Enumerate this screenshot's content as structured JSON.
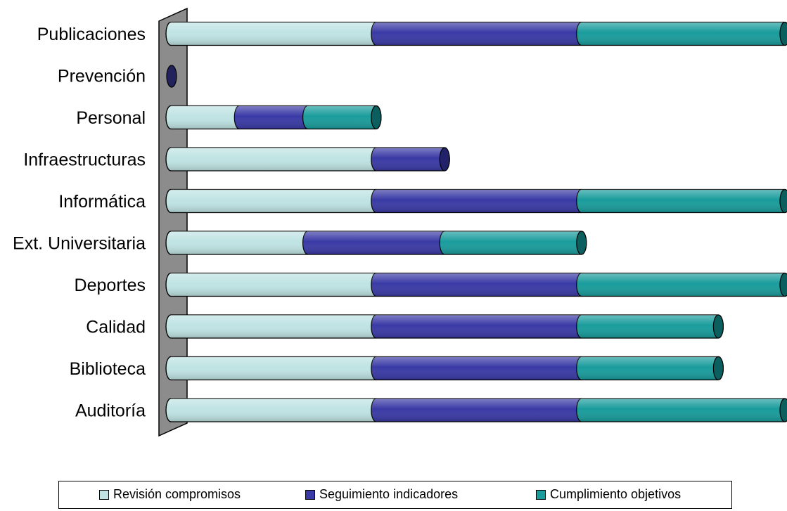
{
  "chart_data": {
    "type": "bar",
    "orientation": "horizontal",
    "stacked": true,
    "categories": [
      "Publicaciones",
      "Prevención",
      "Personal",
      "Infraestructuras",
      "Informática",
      "Ext. Universitaria",
      "Deportes",
      "Calidad",
      "Biblioteca",
      "Auditoría"
    ],
    "series": [
      {
        "name": "Revisión compromisos",
        "color": "#bfe3e3",
        "values": [
          3,
          0,
          1,
          3,
          3,
          2,
          3,
          3,
          3,
          3
        ]
      },
      {
        "name": "Seguimiento indicadores",
        "color": "#3a3aa6",
        "values": [
          3,
          0,
          1,
          1,
          3,
          2,
          3,
          3,
          3,
          3
        ]
      },
      {
        "name": "Cumplimiento objetivos",
        "color": "#1a9c9c",
        "values": [
          3,
          0,
          1,
          0,
          3,
          2,
          3,
          2,
          2,
          3
        ]
      }
    ],
    "xlim": [
      0,
      9
    ],
    "legend_position": "bottom",
    "grid": false
  }
}
